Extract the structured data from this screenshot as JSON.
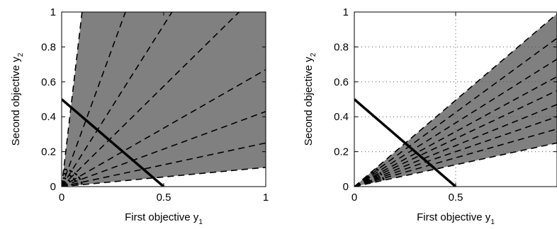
{
  "figure": {
    "background": "#ffffff",
    "fill_color": "#808080",
    "line_color": "#000000",
    "grid_color": "#555555"
  },
  "chart_data": [
    {
      "type": "area",
      "xlabel": "First objective y",
      "xlabel_sub": "1",
      "ylabel": "Second objective y",
      "ylabel_sub": "2",
      "xlim": [
        0,
        1
      ],
      "ylim": [
        0,
        1
      ],
      "xticks": [
        0,
        0.5,
        1
      ],
      "xtick_labels": [
        "0",
        "0.5",
        "1"
      ],
      "yticks": [
        0,
        0.2,
        0.4,
        0.6,
        0.8,
        1
      ],
      "ytick_labels": [
        "0",
        "0.2",
        "0.4",
        "0.6",
        "0.8",
        "1"
      ],
      "grid": false,
      "cone": {
        "boundary_slopes": [
          10,
          0.11
        ]
      },
      "rays": {
        "slopes": [
          10,
          3.2,
          1.85,
          1.15,
          0.67,
          0.43,
          0.25,
          0.11
        ],
        "style": "dashed"
      },
      "arcs": {
        "radii": [
          0.025,
          0.05,
          0.075,
          0.1
        ],
        "style": "dashed"
      },
      "solid_line": {
        "x": [
          0,
          0.5
        ],
        "y": [
          0.5,
          0
        ]
      }
    },
    {
      "type": "area",
      "xlabel": "First objective y",
      "xlabel_sub": "1",
      "ylabel": "Second objective y",
      "ylabel_sub": "2",
      "xlim": [
        0,
        1
      ],
      "ylim": [
        0,
        1
      ],
      "xticks": [
        0,
        0.5
      ],
      "xtick_labels": [
        "0",
        "0.5"
      ],
      "yticks": [
        0,
        0.2,
        0.4,
        0.6,
        0.8,
        1
      ],
      "ytick_labels": [
        "0",
        "0.2",
        "0.4",
        "0.6",
        "0.8",
        "1"
      ],
      "grid": true,
      "grid_x": [
        0.5
      ],
      "grid_y": [
        0.2,
        0.4,
        0.6,
        0.8
      ],
      "cone": {
        "boundary_slopes": [
          0.99,
          0.25
        ]
      },
      "rays": {
        "slopes": [
          0.99,
          0.85,
          0.73,
          0.63,
          0.55,
          0.47,
          0.4,
          0.33,
          0.25
        ],
        "style": "dashed"
      },
      "arcs": {
        "radii": [
          0.03,
          0.06,
          0.09,
          0.12,
          0.15
        ],
        "style": "dashed"
      },
      "solid_line": {
        "x": [
          0,
          0.5
        ],
        "y": [
          0.5,
          0
        ]
      }
    }
  ]
}
